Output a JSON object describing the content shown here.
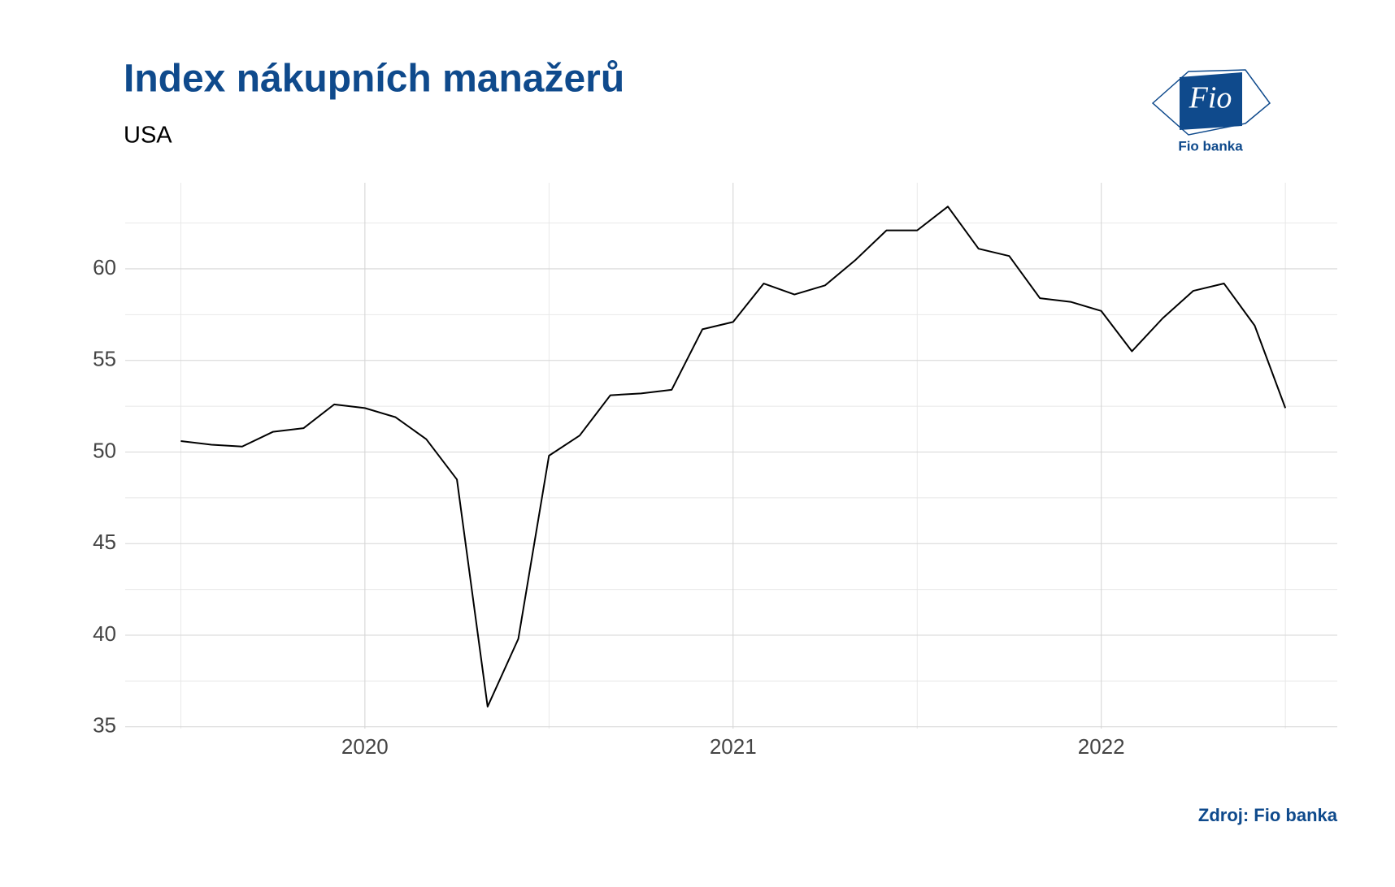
{
  "chart_data": {
    "type": "line",
    "title": "Index nákupních manažerů",
    "subtitle": "USA",
    "source": "Zdroj: Fio banka",
    "x": [
      2019.5,
      2019.5833,
      2019.6667,
      2019.75,
      2019.8333,
      2019.9167,
      2020,
      2020.0833,
      2020.1667,
      2020.25,
      2020.3333,
      2020.4167,
      2020.5,
      2020.5833,
      2020.6667,
      2020.75,
      2020.8333,
      2020.9167,
      2021,
      2021.0833,
      2021.1667,
      2021.25,
      2021.3333,
      2021.4167,
      2021.5,
      2021.5833,
      2021.6667,
      2021.75,
      2021.8333,
      2021.9167,
      2022,
      2022.0833,
      2022.1667,
      2022.25,
      2022.3333,
      2022.4167,
      2022.5
    ],
    "series": [
      {
        "color": "#000000",
        "values": [
          50.6,
          50.4,
          50.3,
          51.1,
          51.3,
          52.6,
          52.4,
          51.9,
          50.7,
          48.5,
          36.1,
          39.8,
          49.8,
          50.9,
          53.1,
          53.2,
          53.4,
          56.7,
          57.1,
          59.2,
          58.6,
          59.1,
          60.5,
          62.1,
          62.1,
          63.4,
          61.1,
          60.7,
          58.4,
          58.2,
          57.7,
          55.5,
          57.3,
          58.8,
          59.2,
          56.9,
          52.4
        ]
      }
    ],
    "xlim": [
      2019.349,
      2022.641
    ],
    "xticks": [
      2020,
      2021,
      2022
    ],
    "ylim": [
      34.9,
      64.7
    ],
    "yticks": [
      35,
      40,
      45,
      50,
      55,
      60
    ],
    "grid": true
  },
  "logo": {
    "mark": "Fio",
    "caption": "Fio banka"
  }
}
